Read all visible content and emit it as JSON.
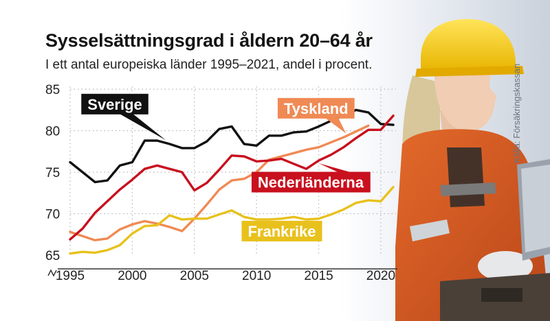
{
  "title": "Sysselsättningsgrad i åldern 20–64 år",
  "subtitle": "I ett antal europeiska länder 1995–2021, andel i procent.",
  "source": "Källa: Försäkringskassan",
  "colors": {
    "sverige": "#111111",
    "tyskland": "#f08a55",
    "nederlanderna": "#c8101e",
    "frankrike": "#e8c11c",
    "grid": "#b4b4b4",
    "axis": "#333333",
    "label_text_light": "#ffffff",
    "label_text_dark": "#ffffff"
  },
  "photo": {
    "subject": "woman-worker-in-orange-overalls-and-yellow-hard-hat"
  },
  "chart_data": {
    "type": "line",
    "title": "Sysselsättningsgrad i åldern 20–64 år",
    "subtitle": "I ett antal europeiska länder 1995–2021, andel i procent.",
    "xlabel": "",
    "ylabel": "",
    "xlim": [
      1995,
      2021
    ],
    "ylim": [
      65,
      85
    ],
    "xticks": [
      1995,
      2000,
      2005,
      2010,
      2015,
      2020
    ],
    "yticks": [
      65,
      70,
      75,
      80,
      85
    ],
    "y_axis_break": true,
    "grid": "vertical dotted",
    "x": [
      1995,
      1996,
      1997,
      1998,
      1999,
      2000,
      2001,
      2002,
      2003,
      2004,
      2005,
      2006,
      2007,
      2008,
      2009,
      2010,
      2011,
      2012,
      2013,
      2014,
      2015,
      2016,
      2017,
      2018,
      2019,
      2020,
      2021
    ],
    "series": [
      {
        "name": "Sverige",
        "key": "sverige",
        "values": [
          76.2,
          75.0,
          73.8,
          74.0,
          75.8,
          76.2,
          78.8,
          78.8,
          78.4,
          77.9,
          77.9,
          78.7,
          80.2,
          80.5,
          78.4,
          78.2,
          79.4,
          79.4,
          79.8,
          79.9,
          80.5,
          81.2,
          81.8,
          82.5,
          82.2,
          80.8,
          80.7
        ]
      },
      {
        "name": "Tyskland",
        "key": "tyskland",
        "values": [
          67.8,
          67.3,
          66.8,
          67.0,
          68.1,
          68.7,
          69.1,
          68.8,
          68.4,
          67.9,
          69.4,
          71.1,
          72.9,
          74.0,
          74.2,
          75.0,
          76.5,
          76.9,
          77.3,
          77.7,
          78.0,
          78.6,
          79.2,
          79.9,
          80.6,
          null,
          null
        ]
      },
      {
        "name": "Nederländerna",
        "key": "nederlanderna",
        "values": [
          66.9,
          68.2,
          70.1,
          71.5,
          72.9,
          74.1,
          75.4,
          75.8,
          75.4,
          75.0,
          72.8,
          73.7,
          75.3,
          77.0,
          76.9,
          76.3,
          76.4,
          76.6,
          76.0,
          75.4,
          76.4,
          77.1,
          78.0,
          79.1,
          80.1,
          80.1,
          81.8
        ]
      },
      {
        "name": "Frankrike",
        "key": "frankrike",
        "values": [
          65.2,
          65.4,
          65.3,
          65.6,
          66.2,
          67.6,
          68.5,
          68.6,
          69.8,
          69.3,
          69.4,
          69.4,
          69.9,
          70.4,
          69.6,
          69.3,
          69.3,
          69.4,
          69.6,
          69.3,
          69.4,
          69.9,
          70.5,
          71.3,
          71.6,
          71.5,
          73.2
        ]
      }
    ],
    "labels": [
      {
        "key": "sverige",
        "text": "Sverige",
        "anchor_year": 2002.7,
        "box_year": 1995.9,
        "box_value": 83.2,
        "pointer": "down-right"
      },
      {
        "key": "tyskland",
        "text": "Tyskland",
        "anchor_year": 2017.2,
        "box_year": 2011.7,
        "box_value": 82.7,
        "pointer": "down-right"
      },
      {
        "key": "nederlanderna",
        "text": "Nederländerna",
        "anchor_year": 2015.0,
        "box_year": 2009.6,
        "box_value": 73.8,
        "pointer": "up-right"
      },
      {
        "key": "frankrike",
        "text": "Frankrike",
        "anchor_year": 2014.8,
        "box_year": 2008.8,
        "box_value": 67.9,
        "pointer": "up-right"
      }
    ]
  }
}
